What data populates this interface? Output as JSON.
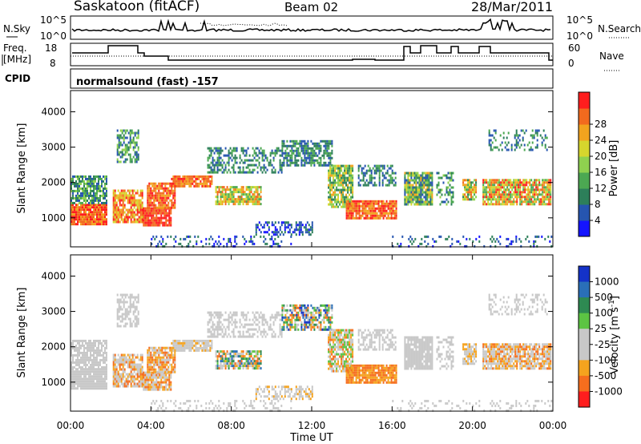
{
  "header": {
    "station": "Saskatoon (fitACF)",
    "beam": "Beam 02",
    "date": "28/Mar/2011"
  },
  "noise_panel": {
    "left_label": "N.Sky",
    "right_label": "N.Search",
    "left_ticks": [
      "10^5",
      "10^0"
    ],
    "right_ticks": [
      "10^5",
      "10^0"
    ]
  },
  "freq_panel": {
    "left_label_line1": "Freq.",
    "left_label_line2": "[MHz]",
    "right_label": "Nave",
    "left_ticks": [
      "18",
      "8"
    ],
    "right_ticks": [
      "60",
      "0"
    ]
  },
  "cpid_panel": {
    "label": "CPID",
    "text": "normalsound (fast) -157"
  },
  "x_axis": {
    "label": "Time UT",
    "ticks": [
      "00:00",
      "04:00",
      "08:00",
      "12:00",
      "16:00",
      "20:00",
      "00:00"
    ]
  },
  "chart_data": [
    {
      "type": "heatmap",
      "title": "",
      "xlabel": "Time UT",
      "ylabel": "Slant Range [km]",
      "x_ticks": [
        "00:00",
        "04:00",
        "08:00",
        "12:00",
        "16:00",
        "20:00",
        "00:00"
      ],
      "y_ticks": [
        1000,
        2000,
        3000,
        4000
      ],
      "ylim": [
        180,
        4600
      ],
      "colorbar": {
        "label": "Power [dB]",
        "ticks": [
          "4",
          "8",
          "12",
          "16",
          "20",
          "24",
          "28"
        ],
        "colors": [
          "#1414ff",
          "#2655b0",
          "#2d7f5a",
          "#4ca852",
          "#8fd14f",
          "#d6d62d",
          "#f2a31e",
          "#f26a1e",
          "#ff1e1e"
        ]
      }
    },
    {
      "type": "heatmap",
      "title": "",
      "xlabel": "Time UT",
      "ylabel": "Slant Range [km]",
      "x_ticks": [
        "00:00",
        "04:00",
        "08:00",
        "12:00",
        "16:00",
        "20:00",
        "00:00"
      ],
      "y_ticks": [
        1000,
        2000,
        3000,
        4000
      ],
      "ylim": [
        180,
        4600
      ],
      "colorbar": {
        "label": "Velocity [m s^-1]",
        "ticks": [
          "1000",
          "500",
          "100",
          "25",
          "-25",
          "-100",
          "-500",
          "-1000"
        ],
        "colors": [
          "#1432c8",
          "#2a6fb8",
          "#2e8a52",
          "#5cc443",
          "#c8c8c8",
          "#c8c8c8",
          "#f5a31e",
          "#f56e1e",
          "#ff1e1e"
        ]
      }
    }
  ]
}
